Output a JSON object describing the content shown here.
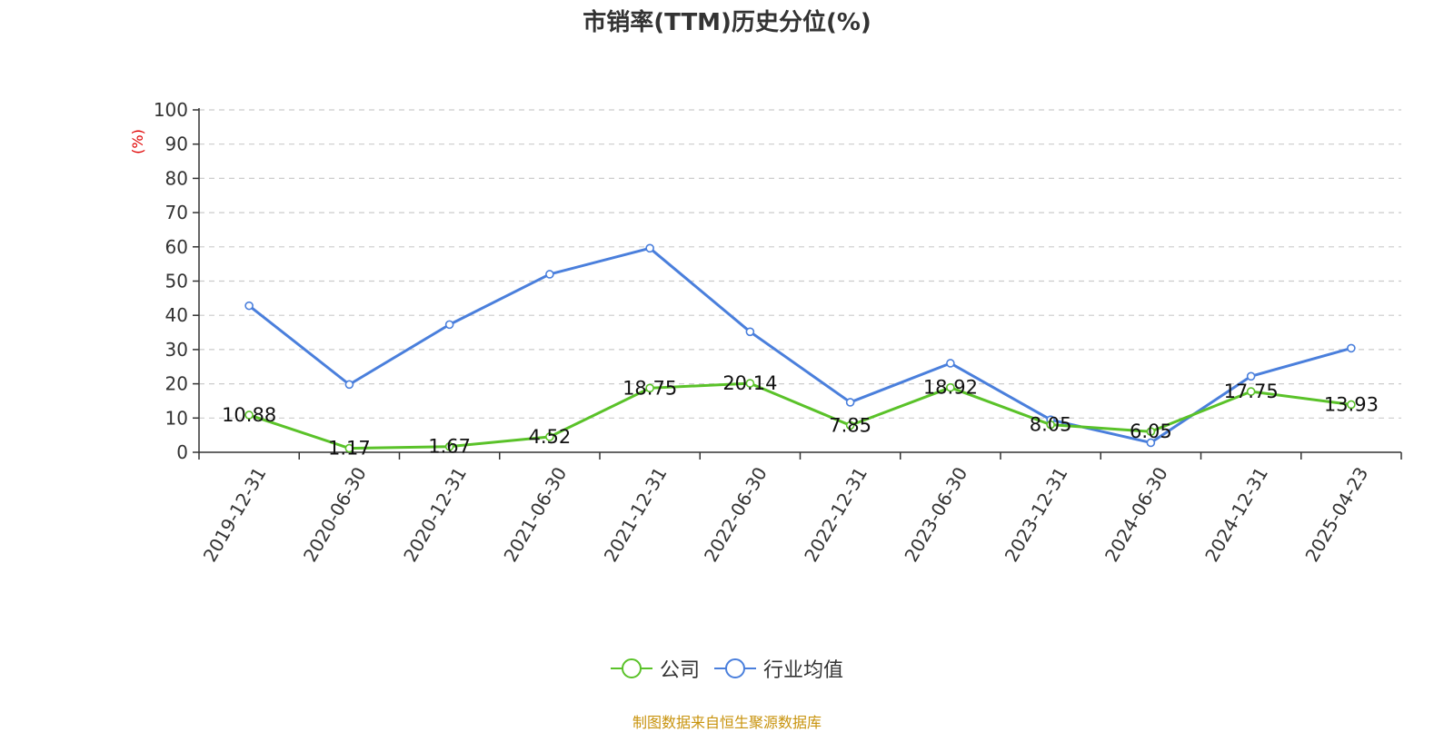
{
  "title": "市销率(TTM)历史分位(%)",
  "footer": "制图数据来自恒生聚源数据库",
  "colors": {
    "company": "#5ac229",
    "industry": "#4a7fdc",
    "unit_label": "#e00000"
  },
  "chart_data": {
    "type": "line",
    "title": "市销率(TTM)历史分位(%)",
    "ylabel": "(%)",
    "ylim": [
      0,
      100
    ],
    "yticks": [
      0,
      10,
      20,
      30,
      40,
      50,
      60,
      70,
      80,
      90,
      100
    ],
    "grid": true,
    "legend_position": "bottom",
    "categories": [
      "2019-12-31",
      "2020-06-30",
      "2020-12-31",
      "2021-06-30",
      "2021-12-31",
      "2022-06-30",
      "2022-12-31",
      "2023-06-30",
      "2023-12-31",
      "2024-06-30",
      "2024-12-31",
      "2025-04-23"
    ],
    "series": [
      {
        "name": "公司",
        "color": "#5ac229",
        "show_labels": true,
        "values": [
          10.88,
          1.17,
          1.67,
          4.52,
          18.75,
          20.14,
          7.85,
          18.92,
          8.05,
          6.05,
          17.75,
          13.93
        ]
      },
      {
        "name": "行业均值",
        "color": "#4a7fdc",
        "show_labels": false,
        "values": [
          42.8,
          19.8,
          37.3,
          52.0,
          59.6,
          35.2,
          14.6,
          26.0,
          9.5,
          2.8,
          22.2,
          30.4
        ]
      }
    ]
  },
  "legend": [
    {
      "label": "公司",
      "color": "#5ac229",
      "icon": "circle-line-icon"
    },
    {
      "label": "行业均值",
      "color": "#4a7fdc",
      "icon": "circle-line-icon"
    }
  ]
}
